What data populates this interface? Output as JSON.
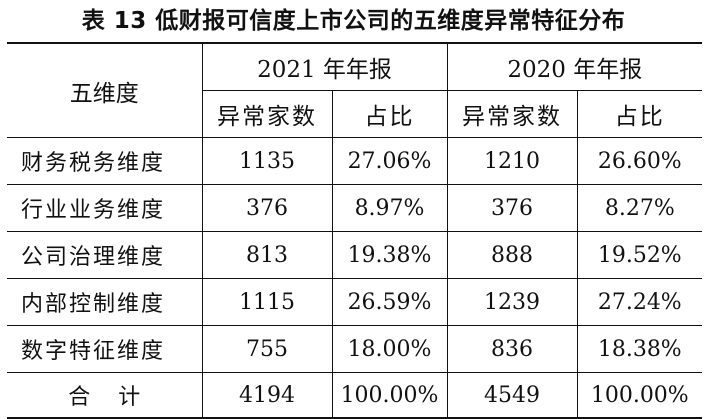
{
  "title": "表 13 低财报可信度上市公司的五维度异常特征分布",
  "header": {
    "dimension_col": "五维度",
    "year_2021": "2021 年年报",
    "year_2020": "2020 年年报",
    "count_label": "异常家数",
    "ratio_label": "占比"
  },
  "rows": [
    {
      "dimension": "财务税务维度",
      "c2021": "1135",
      "r2021": "27.06%",
      "c2020": "1210",
      "r2020": "26.60%"
    },
    {
      "dimension": "行业业务维度",
      "c2021": "376",
      "r2021": "8.97%",
      "c2020": "376",
      "r2020": "8.27%"
    },
    {
      "dimension": "公司治理维度",
      "c2021": "813",
      "r2021": "19.38%",
      "c2020": "888",
      "r2020": "19.52%"
    },
    {
      "dimension": "内部控制维度",
      "c2021": "1115",
      "r2021": "26.59%",
      "c2020": "1239",
      "r2020": "27.24%"
    },
    {
      "dimension": "数字特征维度",
      "c2021": "755",
      "r2021": "18.00%",
      "c2020": "836",
      "r2020": "18.38%"
    }
  ],
  "total": {
    "label": "合计",
    "c2021": "4194",
    "r2021": "100.00%",
    "c2020": "4549",
    "r2020": "100.00%"
  }
}
